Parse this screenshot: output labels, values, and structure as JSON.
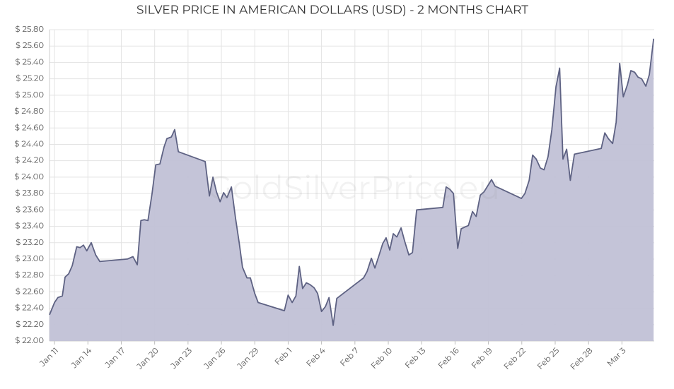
{
  "chart_data": {
    "type": "area",
    "title": "SILVER PRICE IN AMERICAN DOLLARS (USD) - 2 MONTHS CHART",
    "watermark": "GoldSilverPrice.eu",
    "x": [
      -0.45,
      0,
      0.3,
      0.7,
      0.95,
      1.27,
      1.6,
      2.0,
      2.3,
      2.6,
      2.9,
      3.3,
      3.7,
      4.07,
      6.55,
      7.05,
      7.44,
      7.76,
      8.07,
      8.4,
      8.77,
      9.1,
      9.47,
      9.85,
      10.1,
      10.5,
      10.8,
      11.13,
      13.54,
      13.92,
      14.24,
      14.56,
      14.88,
      15.2,
      15.5,
      15.9,
      16.27,
      16.6,
      16.9,
      17.3,
      17.6,
      18.0,
      18.3,
      20.66,
      21.0,
      21.36,
      21.7,
      22.0,
      22.3,
      22.63,
      22.95,
      23.33,
      23.65,
      24.0,
      24.35,
      24.67,
      25.05,
      25.37,
      27.78,
      28.1,
      28.48,
      28.8,
      29.18,
      29.5,
      29.8,
      30.13,
      30.45,
      30.77,
      31.15,
      31.47,
      31.85,
      32.17,
      32.55,
      34.9,
      35.2,
      35.54,
      35.86,
      36.24,
      36.55,
      36.87,
      37.2,
      37.57,
      37.9,
      38.27,
      38.6,
      38.97,
      39.28,
      39.6,
      41.96,
      42.28,
      42.66,
      42.97,
      43.3,
      43.67,
      44.0,
      44.36,
      44.7,
      45.07,
      45.4,
      45.7,
      46.03,
      46.36,
      46.73,
      49.14,
      49.46,
      49.78,
      50.16,
      50.48,
      50.8,
      51.12,
      51.5,
      51.8,
      52.14,
      52.45,
      52.77,
      53.15,
      53.46,
      53.85
    ],
    "series": [
      {
        "name": "Silver",
        "color": "#5e6283",
        "fill": "#c1c1d6",
        "values": [
          22.32,
          22.47,
          22.53,
          22.55,
          22.78,
          22.82,
          22.92,
          23.15,
          23.14,
          23.17,
          23.1,
          23.2,
          23.05,
          22.97,
          23.0,
          23.03,
          22.93,
          23.47,
          23.48,
          23.47,
          23.8,
          24.15,
          24.16,
          24.37,
          24.47,
          24.49,
          24.58,
          24.31,
          24.19,
          23.77,
          24.0,
          23.82,
          23.7,
          23.81,
          23.75,
          23.88,
          23.5,
          23.2,
          22.9,
          22.77,
          22.77,
          22.58,
          22.47,
          22.37,
          22.56,
          22.47,
          22.55,
          22.91,
          22.64,
          22.71,
          22.69,
          22.65,
          22.58,
          22.36,
          22.42,
          22.53,
          22.19,
          22.52,
          22.77,
          22.85,
          23.01,
          22.89,
          23.05,
          23.19,
          23.26,
          23.11,
          23.31,
          23.27,
          23.38,
          23.22,
          23.05,
          23.08,
          23.6,
          23.63,
          23.88,
          23.85,
          23.8,
          23.13,
          23.37,
          23.39,
          23.41,
          23.58,
          23.52,
          23.78,
          23.82,
          23.9,
          23.97,
          23.89,
          23.74,
          23.8,
          23.96,
          24.27,
          24.22,
          24.11,
          24.09,
          24.25,
          24.58,
          25.1,
          25.33,
          24.22,
          24.34,
          23.96,
          24.28,
          24.35,
          24.54,
          24.47,
          24.41,
          24.67,
          25.39,
          24.98,
          25.13,
          25.3,
          25.28,
          25.22,
          25.2,
          25.11,
          25.25,
          25.69
        ]
      }
    ],
    "xlim": [
      -0.45,
      53.9
    ],
    "xticks": [
      {
        "value": 0,
        "label": "Jan 11"
      },
      {
        "value": 3,
        "label": "Jan 14"
      },
      {
        "value": 6,
        "label": "Jan 17"
      },
      {
        "value": 9,
        "label": "Jan 20"
      },
      {
        "value": 12,
        "label": "Jan 23"
      },
      {
        "value": 15,
        "label": "Jan 26"
      },
      {
        "value": 18,
        "label": "Jan 29"
      },
      {
        "value": 21,
        "label": "Feb 1"
      },
      {
        "value": 24,
        "label": "Feb 4"
      },
      {
        "value": 27,
        "label": "Feb 7"
      },
      {
        "value": 30,
        "label": "Feb 10"
      },
      {
        "value": 33,
        "label": "Feb 13"
      },
      {
        "value": 36,
        "label": "Feb 16"
      },
      {
        "value": 39,
        "label": "Feb 19"
      },
      {
        "value": 42,
        "label": "Feb 22"
      },
      {
        "value": 45,
        "label": "Feb 25"
      },
      {
        "value": 48,
        "label": "Feb 28"
      },
      {
        "value": 51,
        "label": "Mar 3"
      }
    ],
    "ylim": [
      22.0,
      25.8
    ],
    "yticks": [
      {
        "value": 22.0,
        "label": "$ 22.00"
      },
      {
        "value": 22.2,
        "label": "$ 22.20"
      },
      {
        "value": 22.4,
        "label": "$ 22.40"
      },
      {
        "value": 22.6,
        "label": "$ 22.60"
      },
      {
        "value": 22.8,
        "label": "$ 22.80"
      },
      {
        "value": 23.0,
        "label": "$ 23.00"
      },
      {
        "value": 23.2,
        "label": "$ 23.20"
      },
      {
        "value": 23.4,
        "label": "$ 23.40"
      },
      {
        "value": 23.6,
        "label": "$ 23.60"
      },
      {
        "value": 23.8,
        "label": "$ 23.80"
      },
      {
        "value": 24.0,
        "label": "$ 24.00"
      },
      {
        "value": 24.2,
        "label": "$ 24.20"
      },
      {
        "value": 24.4,
        "label": "$ 24.40"
      },
      {
        "value": 24.6,
        "label": "$ 24.60"
      },
      {
        "value": 24.8,
        "label": "$ 24.80"
      },
      {
        "value": 25.0,
        "label": "$ 25.00"
      },
      {
        "value": 25.2,
        "label": "$ 25.20"
      },
      {
        "value": 25.4,
        "label": "$ 25.40"
      },
      {
        "value": 25.6,
        "label": "$ 25.60"
      },
      {
        "value": 25.8,
        "label": "$ 25.80"
      }
    ],
    "grid": true
  }
}
